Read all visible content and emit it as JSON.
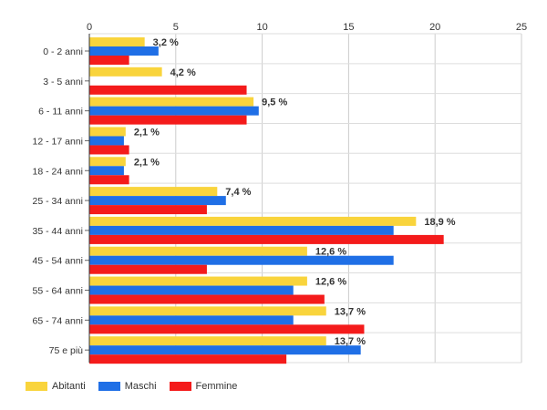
{
  "chart_data": {
    "type": "bar",
    "orientation": "horizontal",
    "categories": [
      "0 - 2 anni",
      "3 - 5 anni",
      "6 - 11 anni",
      "12 - 17 anni",
      "18 - 24 anni",
      "25 - 34 anni",
      "35 - 44 anni",
      "45 - 54 anni",
      "55 - 64 anni",
      "65 - 74 anni",
      "75 e più"
    ],
    "series": [
      {
        "name": "Abitanti",
        "color": "#f9d43c",
        "values": [
          3.2,
          4.2,
          9.5,
          2.1,
          2.1,
          7.4,
          18.9,
          12.6,
          12.6,
          13.7,
          13.7
        ]
      },
      {
        "name": "Maschi",
        "color": "#1f6fe6",
        "values": [
          4.0,
          0,
          9.8,
          2.0,
          2.0,
          7.9,
          17.6,
          17.6,
          11.8,
          11.8,
          15.7
        ]
      },
      {
        "name": "Femmine",
        "color": "#f41b1b",
        "values": [
          2.3,
          9.1,
          9.1,
          2.3,
          2.3,
          6.8,
          20.5,
          6.8,
          13.6,
          15.9,
          11.4
        ]
      }
    ],
    "data_labels": [
      "3,2 %",
      "4,2 %",
      "9,5 %",
      "2,1 %",
      "2,1 %",
      "7,4 %",
      "18,9 %",
      "12,6 %",
      "12,6 %",
      "13,7 %",
      "13,7 %"
    ],
    "xlim": [
      0,
      25
    ],
    "x_ticks": [
      0,
      5,
      10,
      15,
      20,
      25
    ],
    "x_tick_labels": [
      "0",
      "5",
      "10",
      "15",
      "20",
      "25"
    ],
    "x_axis_position": "top",
    "grid": true,
    "legend_position": "bottom-left"
  }
}
